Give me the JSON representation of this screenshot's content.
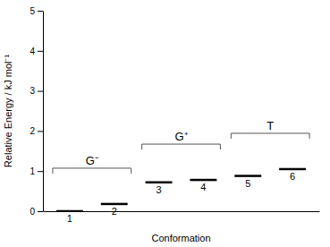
{
  "chart_data": {
    "type": "level",
    "xlabel": "Conformation",
    "ylabel": "Relative Energy / kJ mol⁻¹",
    "categories": [
      "1",
      "2",
      "3",
      "4",
      "5",
      "6"
    ],
    "values": [
      0.0,
      0.18,
      0.72,
      0.78,
      0.88,
      1.05
    ],
    "color": "#000000",
    "ylim": [
      0,
      5
    ],
    "yticks": [
      0,
      1,
      2,
      3,
      4,
      5
    ],
    "tick_labels": "y",
    "annotations": [
      {
        "text": "G⁻",
        "categories": [
          "1",
          "2"
        ]
      },
      {
        "text": "G⁺",
        "categories": [
          "3",
          "4"
        ]
      },
      {
        "text": "T",
        "categories": [
          "5",
          "6"
        ]
      }
    ]
  }
}
